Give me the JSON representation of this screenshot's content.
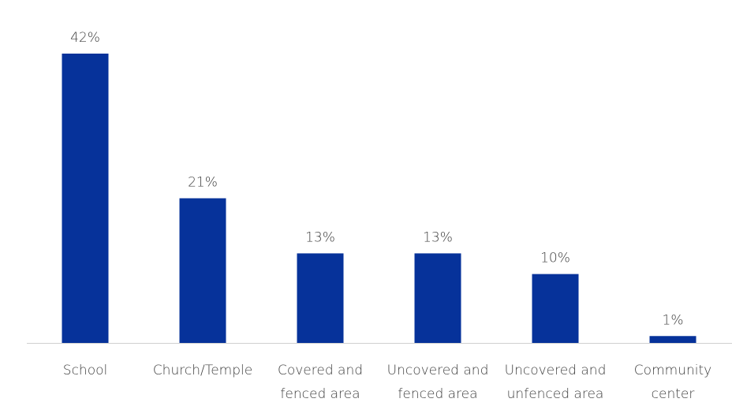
{
  "chart_data": {
    "type": "bar",
    "categories": [
      [
        "School"
      ],
      [
        "Church/Temple"
      ],
      [
        "Covered and",
        "fenced area"
      ],
      [
        "Uncovered and",
        "fenced area"
      ],
      [
        "Uncovered and",
        "unfenced area"
      ],
      [
        "Community",
        "center"
      ]
    ],
    "values": [
      42,
      21,
      13,
      13,
      10,
      1
    ],
    "data_labels": [
      "42%",
      "21%",
      "13%",
      "13%",
      "10%",
      "1%"
    ],
    "title": "",
    "xlabel": "",
    "ylabel": "",
    "ylim": [
      0,
      42
    ],
    "grid": false,
    "legend": "none",
    "colors": {
      "bar": "#06329a",
      "axis": "#d0d0d0",
      "text": "#3f3f3f"
    }
  }
}
